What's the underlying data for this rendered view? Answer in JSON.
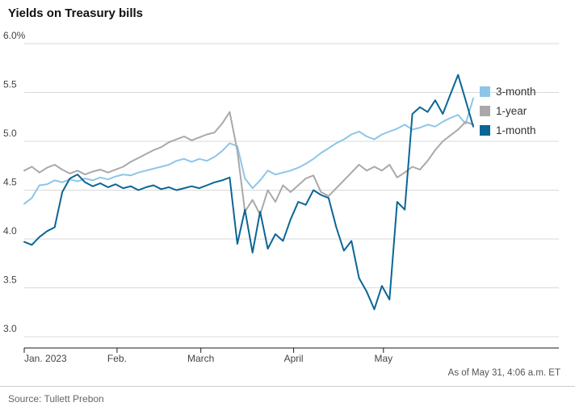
{
  "header": {
    "title": "Yields on Treasury bills"
  },
  "footer": {
    "source": "Source: Tullett Prebon",
    "as_of": "As of May 31, 4:06 a.m. ET"
  },
  "colors": {
    "series_3_month": "#8ec6e8",
    "series_1_year": "#a9a9a9",
    "series_1_month": "#0a6695",
    "gridline": "#d9d9d9",
    "axis_line": "#1a1a1a",
    "tick_text": "#444444"
  },
  "chart_data": {
    "type": "line",
    "title": "Yields on Treasury bills",
    "unit": "%",
    "x_range_days": [
      0,
      150
    ],
    "x_ticks": {
      "days": [
        0,
        31,
        59,
        90,
        120
      ],
      "labels": [
        "Jan. 2023",
        "Feb.",
        "March",
        "April",
        "May"
      ]
    },
    "y_ticks": {
      "values": [
        6.0,
        5.5,
        5.0,
        4.5,
        4.0,
        3.5,
        3.0
      ],
      "labels": [
        "6.0%",
        "5.5",
        "5.0",
        "4.5",
        "4.0",
        "3.5",
        "3.0"
      ]
    },
    "ylim": [
      3.0,
      6.0
    ],
    "grid": true,
    "legend_position": "right",
    "series": [
      {
        "name": "3-month",
        "color": "#8ec6e8",
        "values": [
          4.36,
          4.42,
          4.55,
          4.56,
          4.6,
          4.58,
          4.61,
          4.59,
          4.62,
          4.6,
          4.63,
          4.61,
          4.64,
          4.66,
          4.65,
          4.68,
          4.7,
          4.72,
          4.74,
          4.76,
          4.8,
          4.82,
          4.79,
          4.82,
          4.8,
          4.84,
          4.9,
          4.98,
          4.95,
          4.62,
          4.52,
          4.6,
          4.7,
          4.66,
          4.68,
          4.7,
          4.73,
          4.77,
          4.82,
          4.88,
          4.93,
          4.98,
          5.02,
          5.07,
          5.1,
          5.05,
          5.02,
          5.07,
          5.1,
          5.13,
          5.17,
          5.12,
          5.14,
          5.17,
          5.15,
          5.2,
          5.24,
          5.27,
          5.18,
          5.44
        ]
      },
      {
        "name": "1-year",
        "color": "#a9a9a9",
        "values": [
          4.7,
          4.74,
          4.68,
          4.73,
          4.76,
          4.71,
          4.67,
          4.7,
          4.66,
          4.69,
          4.71,
          4.68,
          4.71,
          4.74,
          4.79,
          4.83,
          4.87,
          4.91,
          4.94,
          4.99,
          5.02,
          5.05,
          5.01,
          5.04,
          5.07,
          5.09,
          5.18,
          5.3,
          4.9,
          4.28,
          4.4,
          4.25,
          4.5,
          4.38,
          4.55,
          4.48,
          4.55,
          4.62,
          4.65,
          4.48,
          4.44,
          4.52,
          4.6,
          4.68,
          4.76,
          4.7,
          4.74,
          4.7,
          4.76,
          4.63,
          4.68,
          4.74,
          4.71,
          4.8,
          4.91,
          5.0,
          5.06,
          5.12,
          5.2,
          5.17
        ]
      },
      {
        "name": "1-month",
        "color": "#0a6695",
        "values": [
          3.97,
          3.94,
          4.02,
          4.08,
          4.12,
          4.48,
          4.62,
          4.66,
          4.58,
          4.54,
          4.57,
          4.53,
          4.56,
          4.52,
          4.54,
          4.5,
          4.53,
          4.55,
          4.51,
          4.53,
          4.5,
          4.52,
          4.54,
          4.52,
          4.55,
          4.58,
          4.6,
          4.63,
          3.95,
          4.3,
          3.86,
          4.28,
          3.9,
          4.05,
          3.98,
          4.2,
          4.38,
          4.35,
          4.5,
          4.45,
          4.42,
          4.12,
          3.88,
          3.98,
          3.6,
          3.46,
          3.28,
          3.52,
          3.38,
          4.38,
          4.3,
          5.28,
          5.35,
          5.3,
          5.42,
          5.28,
          5.48,
          5.68,
          5.42,
          5.15
        ]
      }
    ]
  }
}
